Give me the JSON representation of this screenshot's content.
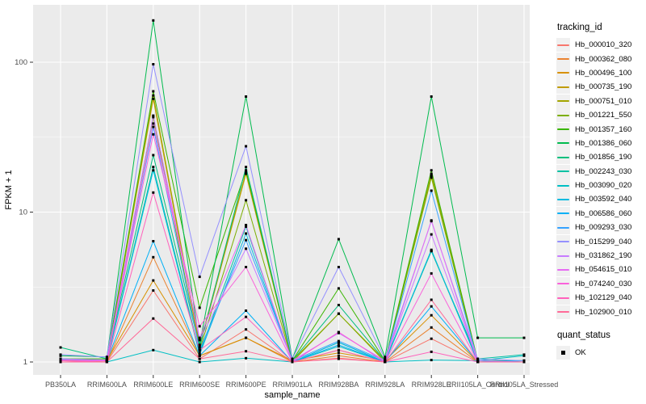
{
  "chart_data": {
    "type": "line",
    "title": "",
    "xlabel": "sample_name",
    "ylabel": "FPKM + 1",
    "y_scale": "log10",
    "ylim": [
      0.85,
      240
    ],
    "y_ticks": [
      1,
      10,
      100
    ],
    "y_tick_labels": [
      "1",
      "10",
      "100"
    ],
    "y_minor_ticks": [
      3.162,
      31.62
    ],
    "grid": true,
    "panel_bg": "#EBEBEB",
    "grid_color": "#FFFFFF",
    "axis_text_color": "#4D4D4D",
    "marker": "black-square",
    "legend_position": "right",
    "categories": [
      "PB350LA",
      "RRIM600LA",
      "RRIM600LE",
      "RRIM600SE",
      "RRIM600PE",
      "RRIM901LA",
      "RRIM928BA",
      "RRIM928LA",
      "RRIM928LE",
      "RRII105LA_Control",
      "RRII105LA_Stressed"
    ],
    "series": [
      {
        "name": "Hb_000010_320",
        "color": "#F8766D",
        "values": [
          1.02,
          1.0,
          3.0,
          1.05,
          1.65,
          1.0,
          1.06,
          1.0,
          1.43,
          1.0,
          1.0
        ]
      },
      {
        "name": "Hb_000362_080",
        "color": "#EA8331",
        "values": [
          1.03,
          1.0,
          5.0,
          1.1,
          1.45,
          1.0,
          1.1,
          1.0,
          1.7,
          1.0,
          1.0
        ]
      },
      {
        "name": "Hb_000496_100",
        "color": "#D89000",
        "values": [
          1.05,
          1.02,
          3.5,
          1.1,
          1.45,
          1.02,
          1.15,
          1.02,
          2.05,
          1.0,
          1.0
        ]
      },
      {
        "name": "Hb_000735_190",
        "color": "#C09B00",
        "values": [
          1.02,
          1.02,
          57.0,
          1.25,
          18.0,
          1.0,
          1.2,
          1.0,
          17.5,
          1.0,
          1.0
        ]
      },
      {
        "name": "Hb_000751_010",
        "color": "#A3A500",
        "values": [
          1.03,
          1.03,
          60.0,
          1.3,
          18.5,
          1.02,
          2.1,
          1.02,
          18.0,
          1.02,
          1.0
        ]
      },
      {
        "name": "Hb_001221_550",
        "color": "#7CAE00",
        "values": [
          1.02,
          1.02,
          43.0,
          1.2,
          12.0,
          1.0,
          2.1,
          1.0,
          17.0,
          1.0,
          1.02
        ]
      },
      {
        "name": "Hb_001357_160",
        "color": "#39B600",
        "values": [
          1.05,
          1.05,
          64.0,
          2.3,
          19.0,
          1.02,
          3.1,
          1.02,
          19.0,
          1.02,
          1.02
        ]
      },
      {
        "name": "Hb_001386_060",
        "color": "#00BB4E",
        "values": [
          1.1,
          1.08,
          190.0,
          1.3,
          59.0,
          1.05,
          6.6,
          1.08,
          59.0,
          1.45,
          1.45
        ]
      },
      {
        "name": "Hb_001856_190",
        "color": "#00BF7D",
        "values": [
          1.25,
          1.05,
          24.0,
          1.25,
          20.0,
          1.02,
          2.4,
          1.02,
          5.5,
          1.02,
          1.02
        ]
      },
      {
        "name": "Hb_002243_030",
        "color": "#00C1A3",
        "values": [
          1.05,
          1.02,
          20.0,
          1.15,
          8.0,
          1.0,
          1.35,
          1.0,
          5.5,
          1.05,
          1.12
        ]
      },
      {
        "name": "Hb_003090_020",
        "color": "#00BFC4",
        "values": [
          1.0,
          1.0,
          1.2,
          1.0,
          1.06,
          1.0,
          1.27,
          1.0,
          1.03,
          1.02,
          1.1
        ]
      },
      {
        "name": "Hb_003592_040",
        "color": "#00BAE0",
        "values": [
          1.02,
          1.02,
          19.0,
          1.12,
          7.2,
          1.0,
          1.35,
          1.0,
          5.6,
          1.0,
          1.02
        ]
      },
      {
        "name": "Hb_006586_060",
        "color": "#00B0F6",
        "values": [
          1.03,
          1.02,
          6.4,
          1.1,
          2.2,
          1.0,
          1.3,
          1.0,
          2.35,
          1.0,
          1.0
        ]
      },
      {
        "name": "Hb_009293_030",
        "color": "#35A2FF",
        "values": [
          1.05,
          1.03,
          37.0,
          1.2,
          6.5,
          1.02,
          1.38,
          1.02,
          13.9,
          1.02,
          1.0
        ]
      },
      {
        "name": "Hb_015299_040",
        "color": "#9590FF",
        "values": [
          1.12,
          1.08,
          97.0,
          3.7,
          27.5,
          1.05,
          4.3,
          1.05,
          8.7,
          1.05,
          1.02
        ]
      },
      {
        "name": "Hb_031862_190",
        "color": "#C77CFF",
        "values": [
          1.05,
          1.03,
          44.0,
          1.4,
          5.7,
          1.02,
          1.56,
          1.02,
          7.1,
          1.02,
          1.0
        ]
      },
      {
        "name": "Hb_054615_010",
        "color": "#E76BF3",
        "values": [
          1.03,
          1.02,
          39.0,
          1.45,
          8.2,
          1.0,
          1.58,
          1.0,
          8.8,
          1.0,
          1.0
        ]
      },
      {
        "name": "Hb_074240_030",
        "color": "#FA62DB",
        "values": [
          1.02,
          1.02,
          33.0,
          1.73,
          4.3,
          1.0,
          1.58,
          1.0,
          3.9,
          1.0,
          1.0
        ]
      },
      {
        "name": "Hb_102129_040",
        "color": "#FF62BC",
        "values": [
          1.02,
          1.0,
          13.5,
          1.2,
          2.0,
          1.0,
          1.2,
          1.0,
          1.17,
          1.0,
          1.0
        ]
      },
      {
        "name": "Hb_102900_010",
        "color": "#FF6A98",
        "values": [
          1.0,
          1.0,
          1.95,
          1.05,
          1.18,
          1.0,
          1.05,
          1.0,
          2.6,
          1.0,
          1.0
        ]
      }
    ]
  },
  "legend": {
    "title": "tracking_id"
  },
  "legend2": {
    "title": "quant_status",
    "items": [
      {
        "label": "OK",
        "marker": "black-square"
      }
    ]
  }
}
